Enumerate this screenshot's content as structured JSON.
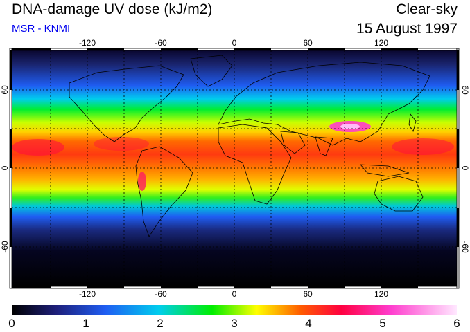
{
  "header": {
    "title": "DNA-damage UV dose (kJ/m2)",
    "credit": "MSR - KNMI",
    "condition": "Clear-sky",
    "date": "15 August 1997"
  },
  "map": {
    "projection": "equirectangular",
    "longitude_ticks": [
      "-120",
      "-60",
      "0",
      "60",
      "120"
    ],
    "latitude_ticks": [
      "60",
      "0",
      "-60"
    ],
    "gridlines": "dotted",
    "zones": [
      {
        "name": "polar-north",
        "lat_range": [
          70,
          90
        ],
        "level": 0.3
      },
      {
        "name": "north-high",
        "lat_range": [
          55,
          70
        ],
        "level": 1.2
      },
      {
        "name": "north-mid",
        "lat_range": [
          40,
          55
        ],
        "level": 2.6
      },
      {
        "name": "subtropics",
        "lat_range": [
          15,
          40
        ],
        "level": 4.3
      },
      {
        "name": "tropics",
        "lat_range": [
          -15,
          15
        ],
        "level": 3.8
      },
      {
        "name": "south-sub",
        "lat_range": [
          -30,
          -15
        ],
        "level": 2.5
      },
      {
        "name": "south-mid",
        "lat_range": [
          -45,
          -30
        ],
        "level": 1.0
      },
      {
        "name": "south-high",
        "lat_range": [
          -90,
          -45
        ],
        "level": 0.1
      }
    ]
  },
  "colorbar": {
    "min": 0,
    "max": 6,
    "labels": [
      "0",
      "1",
      "2",
      "3",
      "4",
      "5",
      "6"
    ],
    "colors": [
      "#000000",
      "#1e1f7a",
      "#1f5df2",
      "#00cdee",
      "#00ee00",
      "#ffff00",
      "#ff5a00",
      "#ff0040",
      "#ff3ccd",
      "#ffe8ff"
    ]
  }
}
